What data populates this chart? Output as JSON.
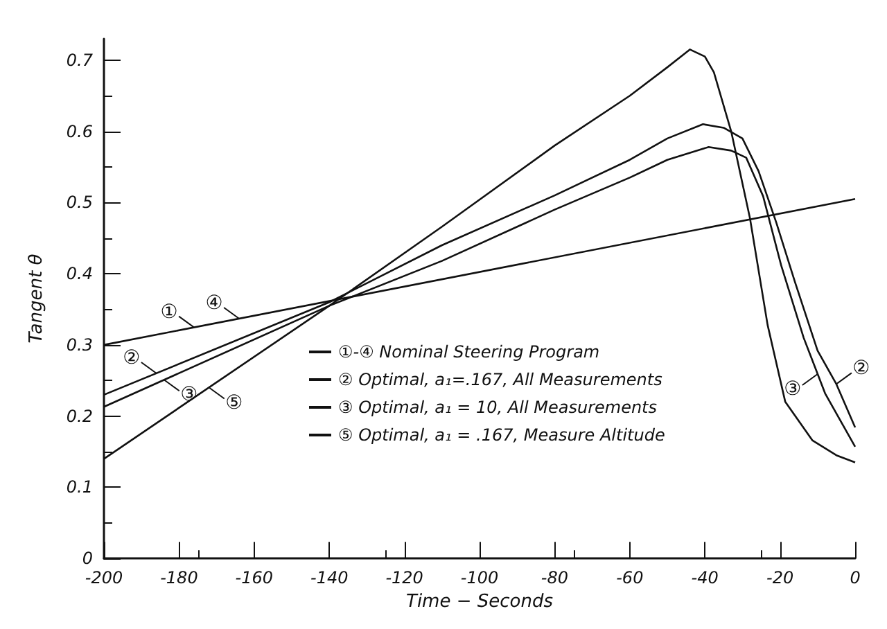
{
  "chart_data": {
    "type": "line",
    "xlabel": "Time − Seconds",
    "ylabel": "Tangent θ",
    "xlim": [
      -200,
      0
    ],
    "xticks": [
      -200,
      -180,
      -160,
      -140,
      -120,
      -100,
      -80,
      -60,
      -40,
      -20,
      0
    ],
    "ylim": [
      0,
      0.73
    ],
    "yticks": [
      0,
      0.1,
      0.2,
      0.3,
      0.4,
      0.5,
      0.6,
      0.7
    ],
    "grid": false,
    "marker": "none",
    "line_style": "solid",
    "legend": "center",
    "series": [
      {
        "name": "①-④ Nominal Steering Program",
        "color": "#111111",
        "x": [
          -200,
          0
        ],
        "values": [
          0.3,
          0.505
        ]
      },
      {
        "name": "② Optimal, a₁=.167, All Measurements",
        "color": "#111111",
        "x": [
          -200,
          -140,
          -110,
          -80,
          -60,
          -50,
          -40.5,
          -35,
          -30,
          -25.7,
          -21,
          -16,
          -10,
          -5,
          0
        ],
        "values": [
          0.23,
          0.36,
          0.44,
          0.51,
          0.56,
          0.59,
          0.61,
          0.605,
          0.59,
          0.544,
          0.472,
          0.388,
          0.292,
          0.245,
          0.184
        ]
      },
      {
        "name": "③ Optimal, a₁ = 10, All Measurements",
        "color": "#111111",
        "x": [
          -200,
          -140,
          -110,
          -80,
          -60,
          -50,
          -39,
          -33,
          -29,
          -24.5,
          -19.7,
          -13.7,
          -8,
          0
        ],
        "values": [
          0.213,
          0.355,
          0.418,
          0.49,
          0.535,
          0.56,
          0.578,
          0.573,
          0.563,
          0.509,
          0.412,
          0.31,
          0.232,
          0.157
        ]
      },
      {
        "name": "⑤ Optimal, a₁ = .167, Measure Altitude",
        "color": "#111111",
        "x": [
          -200,
          -140,
          -110,
          -80,
          -60,
          -50,
          -44,
          -40,
          -37.6,
          -33,
          -28,
          -23.3,
          -18.6,
          -11.4,
          -5,
          0
        ],
        "values": [
          0.14,
          0.355,
          0.466,
          0.58,
          0.65,
          0.69,
          0.715,
          0.705,
          0.683,
          0.6,
          0.478,
          0.328,
          0.22,
          0.166,
          0.145,
          0.135
        ]
      }
    ],
    "annotations": [
      {
        "text": "①",
        "x": -176,
        "y": 0.3246
      },
      {
        "text": "④",
        "x": -164,
        "y": 0.3369
      },
      {
        "text": "②",
        "x": -186,
        "y": 0.26
      },
      {
        "text": "③",
        "x": -184,
        "y": 0.251
      },
      {
        "text": "⑤",
        "x": -172,
        "y": 0.24
      },
      {
        "text": "②",
        "x": -5,
        "y": 0.245
      },
      {
        "text": "③",
        "x": -10,
        "y": 0.259
      }
    ]
  }
}
